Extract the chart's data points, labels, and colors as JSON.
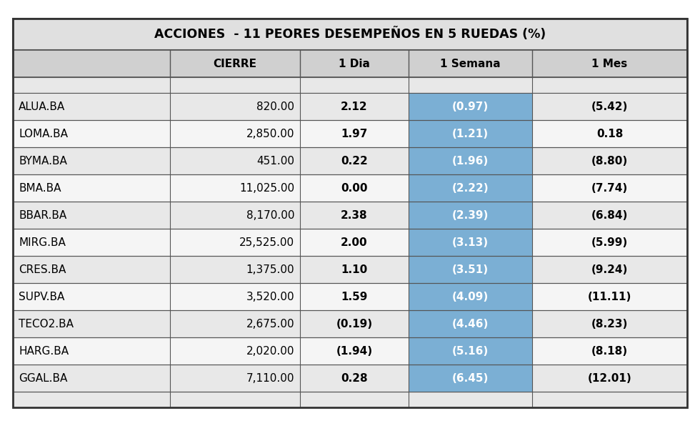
{
  "title": "ACCIONES  - 11 PEORES DESEMPEÑOS EN 5 RUEDAS (%)",
  "columns": [
    "",
    "CIERRE",
    "1 Dia",
    "1 Semana",
    "1 Mes"
  ],
  "rows": [
    [
      "ALUA.BA",
      "820.00",
      "2.12",
      "(0.97)",
      "(5.42)"
    ],
    [
      "LOMA.BA",
      "2,850.00",
      "1.97",
      "(1.21)",
      "0.18"
    ],
    [
      "BYMA.BA",
      "451.00",
      "0.22",
      "(1.96)",
      "(8.80)"
    ],
    [
      "BMA.BA",
      "11,025.00",
      "0.00",
      "(2.22)",
      "(7.74)"
    ],
    [
      "BBAR.BA",
      "8,170.00",
      "2.38",
      "(2.39)",
      "(6.84)"
    ],
    [
      "MIRG.BA",
      "25,525.00",
      "2.00",
      "(3.13)",
      "(5.99)"
    ],
    [
      "CRES.BA",
      "1,375.00",
      "1.10",
      "(3.51)",
      "(9.24)"
    ],
    [
      "SUPV.BA",
      "3,520.00",
      "1.59",
      "(4.09)",
      "(11.11)"
    ],
    [
      "TECO2.BA",
      "2,675.00",
      "(0.19)",
      "(4.46)",
      "(8.23)"
    ],
    [
      "HARG.BA",
      "2,020.00",
      "(1.94)",
      "(5.16)",
      "(8.18)"
    ],
    [
      "GGAL.BA",
      "7,110.00",
      "0.28",
      "(6.45)",
      "(12.01)"
    ]
  ],
  "col_alignments": [
    "left",
    "right",
    "center",
    "center",
    "center"
  ],
  "col_bold": [
    false,
    false,
    true,
    true,
    true
  ],
  "title_bg": "#e0e0e0",
  "header_bg": "#d0d0d0",
  "row_bg_even": "#e8e8e8",
  "row_bg_odd": "#f5f5f5",
  "semana_col_bg": "#7bafd4",
  "semana_text_color": "#ffffff",
  "border_color": "#555555",
  "outer_border_color": "#333333",
  "text_color": "#000000",
  "fig_bg": "#ffffff",
  "title_fontsize": 12.5,
  "header_fontsize": 11,
  "data_fontsize": 11
}
